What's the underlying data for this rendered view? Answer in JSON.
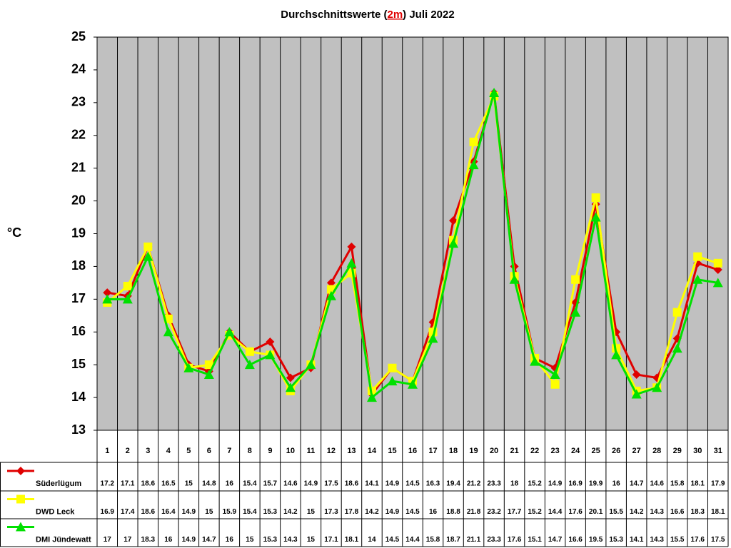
{
  "chart_data": {
    "type": "line",
    "title": [
      "Durchschnittswerte (",
      "2m",
      ") Juli 2022"
    ],
    "y_label": "°C",
    "categories": [
      "1",
      "2",
      "3",
      "4",
      "5",
      "6",
      "7",
      "8",
      "9",
      "10",
      "11",
      "12",
      "13",
      "14",
      "15",
      "16",
      "17",
      "18",
      "19",
      "20",
      "21",
      "22",
      "23",
      "24",
      "25",
      "26",
      "27",
      "28",
      "29",
      "30",
      "31"
    ],
    "series": [
      {
        "name": "Süderlügum",
        "color": "#e00000",
        "marker": "diamond",
        "values": [
          17.2,
          17.1,
          18.6,
          16.5,
          15,
          14.8,
          16,
          15.4,
          15.7,
          14.6,
          14.9,
          17.5,
          18.6,
          14.1,
          14.9,
          14.5,
          16.3,
          19.4,
          21.2,
          23.3,
          18,
          15.2,
          14.9,
          16.9,
          19.9,
          16,
          14.7,
          14.6,
          15.8,
          18.1,
          17.9
        ]
      },
      {
        "name": "DWD Leck",
        "color": "#ffff00",
        "marker": "square",
        "values": [
          16.9,
          17.4,
          18.6,
          16.4,
          14.9,
          15,
          15.9,
          15.4,
          15.3,
          14.2,
          15,
          17.3,
          17.8,
          14.2,
          14.9,
          14.5,
          16,
          18.8,
          21.8,
          23.2,
          17.7,
          15.2,
          14.4,
          17.6,
          20.1,
          15.5,
          14.2,
          14.3,
          16.6,
          18.3,
          18.1
        ]
      },
      {
        "name": "DMI Jündewatt",
        "color": "#00e000",
        "marker": "triangle",
        "values": [
          17,
          17,
          18.3,
          16,
          14.9,
          14.7,
          16,
          15,
          15.3,
          14.3,
          15,
          17.1,
          18.1,
          14,
          14.5,
          14.4,
          15.8,
          18.7,
          21.1,
          23.3,
          17.6,
          15.1,
          14.7,
          16.6,
          19.5,
          15.3,
          14.1,
          14.3,
          15.5,
          17.6,
          17.5
        ]
      }
    ],
    "ylim": [
      13,
      25
    ],
    "yticks": [
      13,
      14,
      15,
      16,
      17,
      18,
      19,
      20,
      21,
      22,
      23,
      24,
      25
    ],
    "grid": "vertical"
  }
}
